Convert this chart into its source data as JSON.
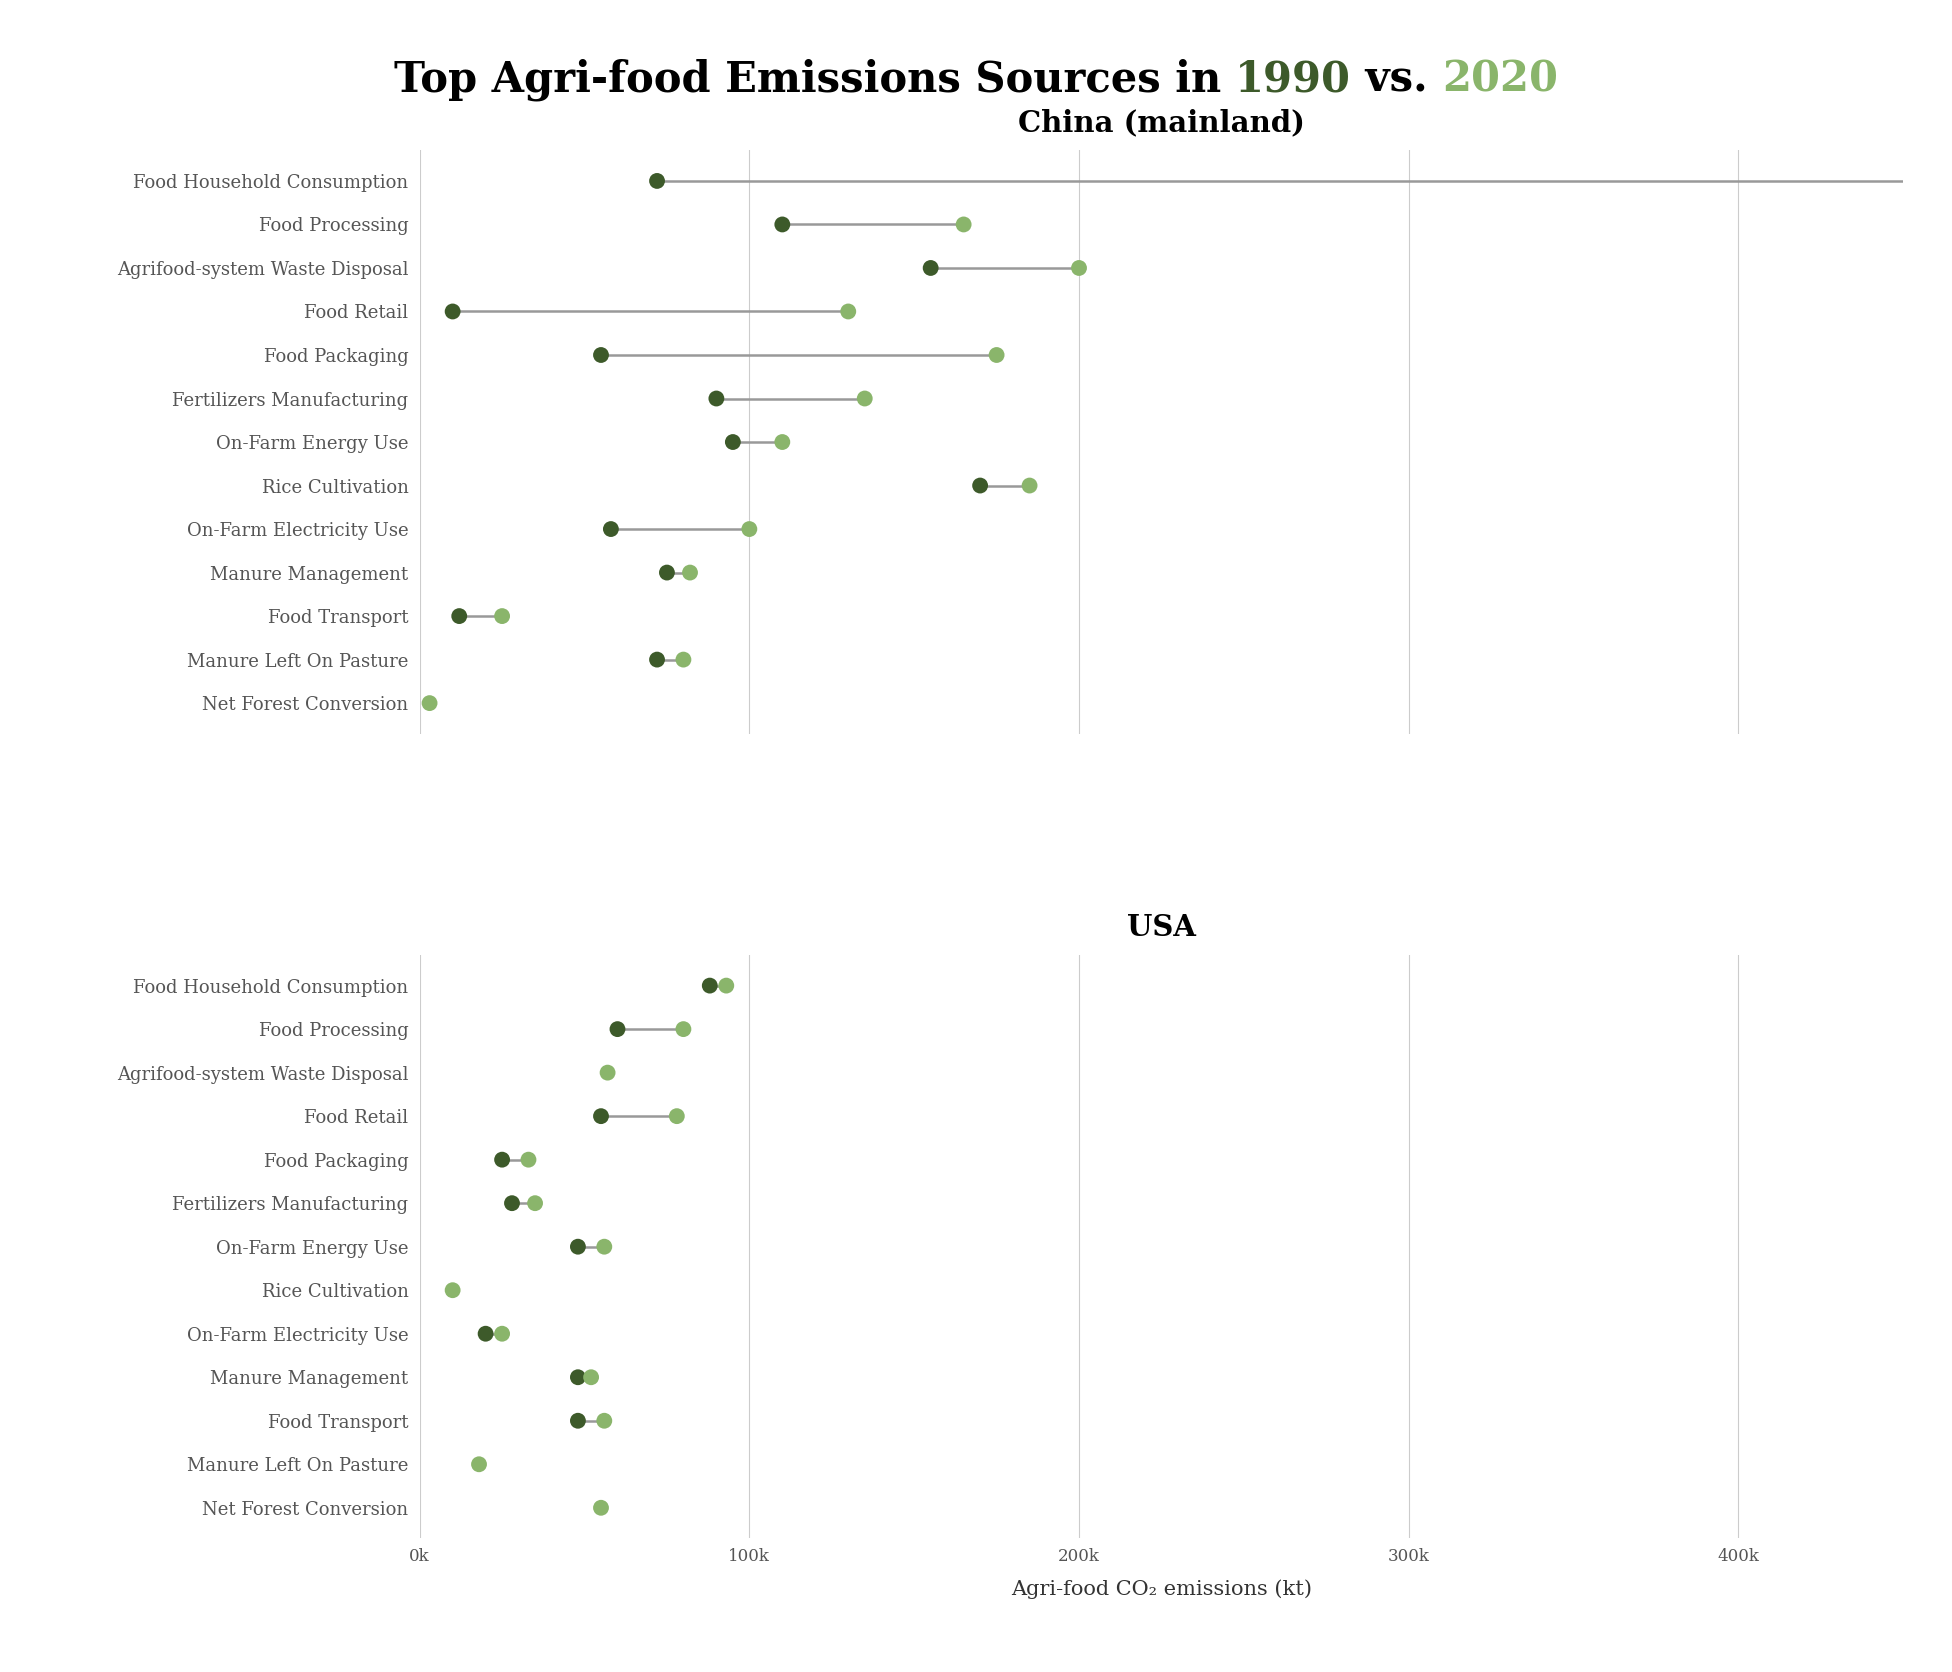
{
  "title_parts": [
    "Top Agri-food Emissions Sources in ",
    "1990",
    " vs. ",
    "2020"
  ],
  "title_colors": [
    "black",
    "#3d5a2a",
    "black",
    "#8ab56b"
  ],
  "title_fontsize": 30,
  "subtitle_fontsize": 21,
  "color_1990": "#3d5a2a",
  "color_2020": "#8ab56b",
  "connector_color": "#999999",
  "background_color": "#ffffff",
  "xlabel": "Agri-food CO₂ emissions (kt)",
  "xlabel_fontsize": 15,
  "xlim": [
    0,
    450000
  ],
  "xtick_labels": [
    "0k",
    "100k",
    "200k",
    "300k",
    "400k"
  ],
  "xtick_values": [
    0,
    100000,
    200000,
    300000,
    400000
  ],
  "marker_size": 130,
  "lw": 1.8,
  "label_fontsize": 13,
  "tick_fontsize": 12,
  "categories": [
    "Food Household Consumption",
    "Food Processing",
    "Agrifood-system Waste Disposal",
    "Food Retail",
    "Food Packaging",
    "Fertilizers Manufacturing",
    "On-Farm Energy Use",
    "Rice Cultivation",
    "On-Farm Electricity Use",
    "Manure Management",
    "Food Transport",
    "Manure Left On Pasture",
    "Net Forest Conversion"
  ],
  "china_1990": [
    72000,
    110000,
    155000,
    10000,
    55000,
    90000,
    95000,
    170000,
    58000,
    75000,
    12000,
    72000,
    null
  ],
  "china_2020": [
    455000,
    165000,
    200000,
    130000,
    175000,
    135000,
    110000,
    185000,
    100000,
    82000,
    25000,
    80000,
    3000
  ],
  "usa_1990": [
    88000,
    60000,
    null,
    55000,
    25000,
    28000,
    48000,
    null,
    20000,
    48000,
    48000,
    null,
    null
  ],
  "usa_2020": [
    93000,
    80000,
    57000,
    78000,
    33000,
    35000,
    56000,
    10000,
    25000,
    52000,
    56000,
    18000,
    55000
  ],
  "china_title": "China (mainland)",
  "usa_title": "USA"
}
